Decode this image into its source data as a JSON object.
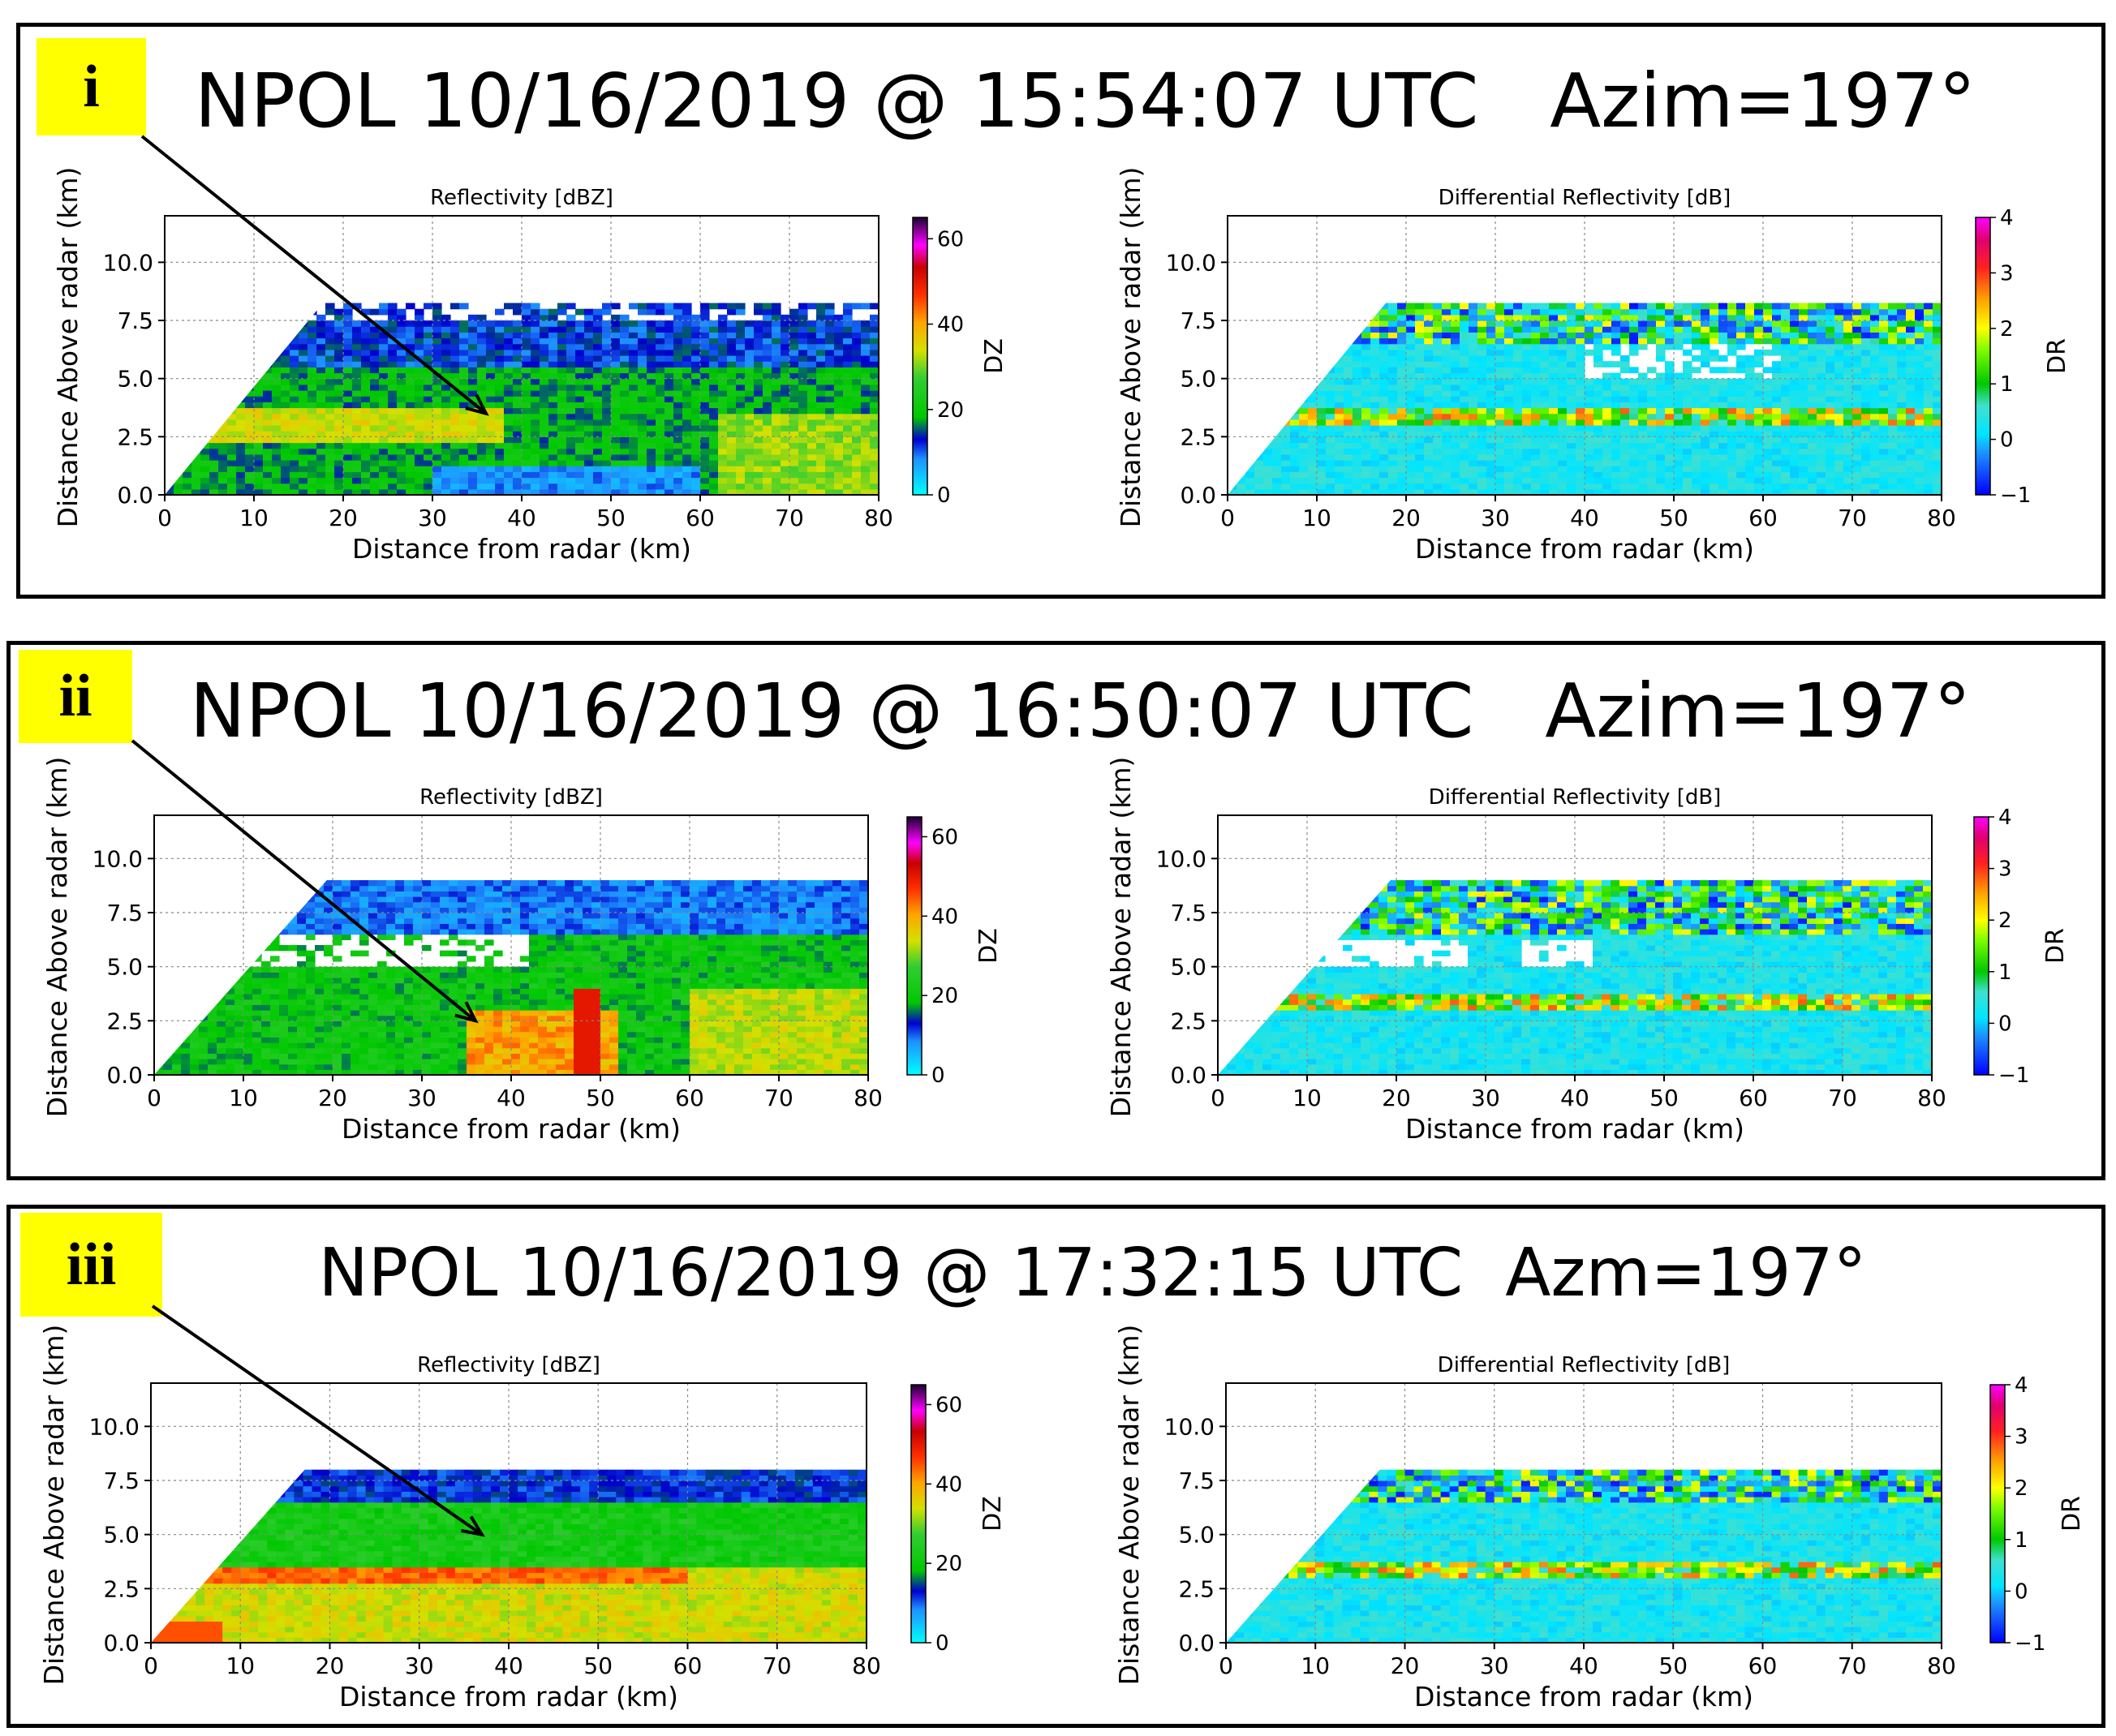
{
  "panels": [
    {
      "label": "i",
      "title": "NPOL 10/16/2019 @ 15:54:07 UTC   Azim=197°",
      "charts": [
        {
          "type": "heatmap",
          "title": "Reflectivity [dBZ]",
          "xlabel": "Distance from radar (km)",
          "ylabel": "Distance Above radar  (km)",
          "xlim": [
            0,
            80
          ],
          "ylim": [
            0,
            12
          ],
          "xticks": [
            0,
            10,
            20,
            30,
            40,
            50,
            60,
            70,
            80
          ],
          "yticks": [
            "0.0",
            "2.5",
            "5.0",
            "7.5",
            "10.0"
          ],
          "colorbar": {
            "label": "DZ",
            "ticks": [
              0,
              20,
              40,
              60
            ],
            "range": [
              0,
              65
            ],
            "palette": "dz"
          },
          "echo_top_km": 8.6,
          "profile": "dz1"
        },
        {
          "type": "heatmap",
          "title": "Differential Reflectivity [dB]",
          "xlabel": "Distance from radar (km)",
          "ylabel": "Distance Above radar  (km)",
          "xlim": [
            0,
            80
          ],
          "ylim": [
            0,
            12
          ],
          "xticks": [
            0,
            10,
            20,
            30,
            40,
            50,
            60,
            70,
            80
          ],
          "yticks": [
            "0.0",
            "2.5",
            "5.0",
            "7.5",
            "10.0"
          ],
          "colorbar": {
            "label": "DR",
            "ticks": [
              -1,
              0,
              1,
              2,
              3,
              4
            ],
            "range": [
              -1,
              4
            ],
            "palette": "dr"
          },
          "echo_top_km": 8.6,
          "profile": "dr1"
        }
      ]
    },
    {
      "label": "ii",
      "title": "NPOL 10/16/2019 @ 16:50:07 UTC   Azim=197°",
      "charts": [
        {
          "type": "heatmap",
          "title": "Reflectivity [dBZ]",
          "xlabel": "Distance from radar (km)",
          "ylabel": "Distance Above radar  (km)",
          "xlim": [
            0,
            80
          ],
          "ylim": [
            0,
            12
          ],
          "xticks": [
            0,
            10,
            20,
            30,
            40,
            50,
            60,
            70,
            80
          ],
          "yticks": [
            "0.0",
            "2.5",
            "5.0",
            "7.5",
            "10.0"
          ],
          "colorbar": {
            "label": "DZ",
            "ticks": [
              0,
              20,
              40,
              60
            ],
            "range": [
              0,
              65
            ],
            "palette": "dz"
          },
          "echo_top_km": 9.3,
          "profile": "dz2"
        },
        {
          "type": "heatmap",
          "title": "Differential Reflectivity [dB]",
          "xlabel": "Distance from radar (km)",
          "ylabel": "Distance Above radar  (km)",
          "xlim": [
            0,
            80
          ],
          "ylim": [
            0,
            12
          ],
          "xticks": [
            0,
            10,
            20,
            30,
            40,
            50,
            60,
            70,
            80
          ],
          "yticks": [
            "0.0",
            "2.5",
            "5.0",
            "7.5",
            "10.0"
          ],
          "colorbar": {
            "label": "DR",
            "ticks": [
              -1,
              0,
              1,
              2,
              3,
              4
            ],
            "range": [
              -1,
              4
            ],
            "palette": "dr"
          },
          "echo_top_km": 9.3,
          "profile": "dr2"
        }
      ]
    },
    {
      "label": "iii",
      "title": "NPOL 10/16/2019 @ 17:32:15 UTC  Azm=197°",
      "charts": [
        {
          "type": "heatmap",
          "title": "Reflectivity [dBZ]",
          "xlabel": "Distance from radar (km)",
          "ylabel": "Distance Above radar  (km)",
          "xlim": [
            0,
            80
          ],
          "ylim": [
            0,
            12
          ],
          "xticks": [
            0,
            10,
            20,
            30,
            40,
            50,
            60,
            70,
            80
          ],
          "yticks": [
            "0.0",
            "2.5",
            "5.0",
            "7.5",
            "10.0"
          ],
          "colorbar": {
            "label": "DZ",
            "ticks": [
              0,
              20,
              40,
              60
            ],
            "range": [
              0,
              65
            ],
            "palette": "dz"
          },
          "echo_top_km": 8.2,
          "profile": "dz3"
        },
        {
          "type": "heatmap",
          "title": "Differential Reflectivity [dB]",
          "xlabel": "Distance from radar (km)",
          "ylabel": "Distance Above radar  (km)",
          "xlim": [
            0,
            80
          ],
          "ylim": [
            0,
            12
          ],
          "xticks": [
            0,
            10,
            20,
            30,
            40,
            50,
            60,
            70,
            80
          ],
          "yticks": [
            "0.0",
            "2.5",
            "5.0",
            "7.5",
            "10.0"
          ],
          "colorbar": {
            "label": "DR",
            "ticks": [
              -1,
              0,
              1,
              2,
              3,
              4
            ],
            "range": [
              -1,
              4
            ],
            "palette": "dr"
          },
          "echo_top_km": 8.2,
          "profile": "dr3"
        }
      ]
    }
  ],
  "arrows": [
    {
      "target_x_km": 36,
      "target_y_km": 3.5
    },
    {
      "target_x_km": 36,
      "target_y_km": 2.5
    },
    {
      "target_x_km": 37,
      "target_y_km": 5.0
    }
  ],
  "colors": {
    "label_bg": "#ffff00",
    "frame": "#000000",
    "arrow": "#000000"
  }
}
